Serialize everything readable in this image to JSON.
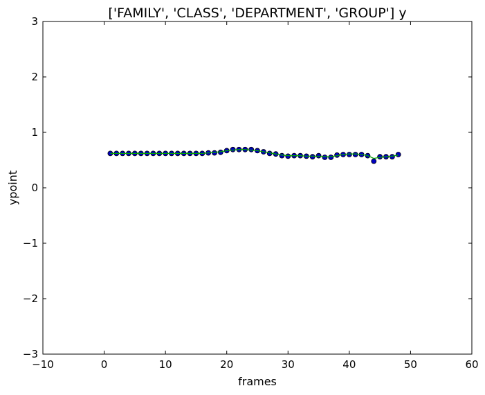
{
  "chart_data": {
    "type": "scatter",
    "title": "['FAMILY', 'CLASS', 'DEPARTMENT', 'GROUP'] y",
    "xlabel": "frames",
    "ylabel": "ypoint",
    "xlim": [
      -10,
      60
    ],
    "ylim": [
      -3,
      3
    ],
    "xticks": [
      -10,
      0,
      10,
      20,
      30,
      40,
      50,
      60
    ],
    "yticks": [
      -3,
      -2,
      -1,
      0,
      1,
      2,
      3
    ],
    "xtick_labels": [
      "−10",
      "0",
      "10",
      "20",
      "30",
      "40",
      "50",
      "60"
    ],
    "ytick_labels": [
      "−3",
      "−2",
      "−1",
      "0",
      "1",
      "2",
      "3"
    ],
    "grid": false,
    "series": [
      {
        "kind": "points",
        "color": "#0000bf",
        "edge_color": "#000000",
        "x": [
          1,
          2,
          3,
          4,
          5,
          6,
          7,
          8,
          9,
          10,
          11,
          12,
          13,
          14,
          15,
          16,
          17,
          18,
          19,
          20,
          21,
          22,
          23,
          24,
          25,
          26,
          27,
          28,
          29,
          30,
          31,
          32,
          33,
          34,
          35,
          36,
          37,
          38,
          39,
          40,
          41,
          42,
          43,
          44,
          45,
          46,
          47,
          48
        ],
        "y": [
          0.62,
          0.62,
          0.62,
          0.62,
          0.62,
          0.62,
          0.62,
          0.62,
          0.62,
          0.62,
          0.62,
          0.62,
          0.62,
          0.62,
          0.62,
          0.62,
          0.63,
          0.63,
          0.64,
          0.67,
          0.69,
          0.69,
          0.69,
          0.69,
          0.67,
          0.65,
          0.62,
          0.61,
          0.58,
          0.57,
          0.58,
          0.58,
          0.57,
          0.56,
          0.58,
          0.55,
          0.55,
          0.59,
          0.6,
          0.6,
          0.6,
          0.6,
          0.58,
          0.48,
          0.56,
          0.56,
          0.56,
          0.6
        ]
      },
      {
        "kind": "line",
        "color": "#00a000",
        "x": [
          1,
          2,
          3,
          4,
          5,
          6,
          7,
          8,
          9,
          10,
          11,
          12,
          13,
          14,
          15,
          16,
          17,
          18,
          19,
          20,
          21,
          22,
          23,
          24,
          25,
          26,
          27,
          28,
          29,
          30,
          31,
          32,
          33,
          34,
          35,
          36,
          37,
          38,
          39,
          40,
          41,
          42,
          43,
          44,
          45,
          46,
          47,
          48
        ],
        "y": [
          0.62,
          0.62,
          0.62,
          0.62,
          0.62,
          0.62,
          0.62,
          0.62,
          0.62,
          0.62,
          0.62,
          0.62,
          0.62,
          0.62,
          0.62,
          0.62,
          0.63,
          0.64,
          0.65,
          0.67,
          0.68,
          0.69,
          0.69,
          0.68,
          0.67,
          0.65,
          0.63,
          0.61,
          0.59,
          0.58,
          0.58,
          0.58,
          0.57,
          0.57,
          0.57,
          0.56,
          0.56,
          0.58,
          0.6,
          0.61,
          0.61,
          0.6,
          0.58,
          0.53,
          0.55,
          0.56,
          0.57,
          0.59
        ]
      }
    ]
  }
}
